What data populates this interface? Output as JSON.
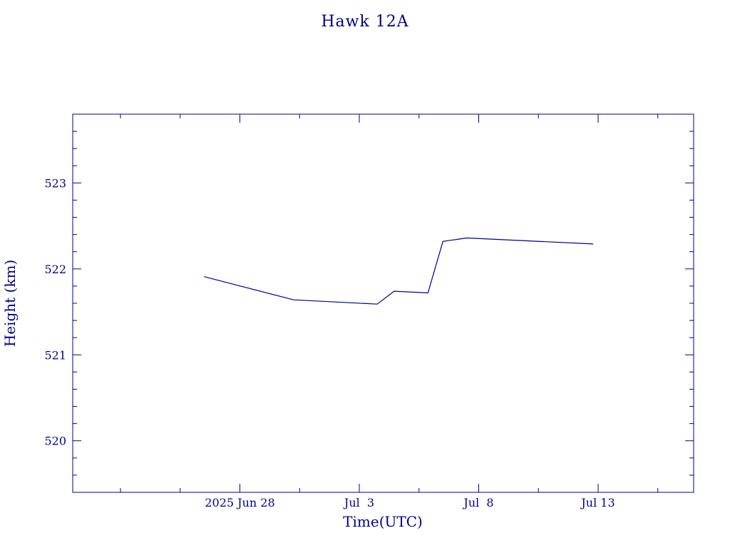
{
  "chart_data": {
    "type": "line",
    "title": "Hawk 12A",
    "xlabel": "Time(UTC)",
    "ylabel": "Height (km)",
    "x_axis": {
      "type": "date",
      "range": [
        "2025-06-21",
        "2025-07-17"
      ],
      "major_ticks": [
        {
          "date": "2025-06-28",
          "label": "2025 Jun 28"
        },
        {
          "date": "2025-07-03",
          "label": "Jul  3"
        },
        {
          "date": "2025-07-08",
          "label": "Jul  8"
        },
        {
          "date": "2025-07-13",
          "label": "Jul 13"
        }
      ]
    },
    "y_axis": {
      "range": [
        519.4,
        523.8
      ],
      "major_ticks": [
        520,
        521,
        522,
        523
      ],
      "tick_labels": [
        "520",
        "521",
        "522",
        "523"
      ]
    },
    "grid": false,
    "colors": {
      "line": "#00008b",
      "axes": "#00008b",
      "text": "#00008b"
    },
    "series": [
      {
        "points": [
          {
            "x": "2025-06-26T12:00",
            "y": 521.91
          },
          {
            "x": "2025-06-30T06:00",
            "y": 521.64
          },
          {
            "x": "2025-07-03T18:00",
            "y": 521.59
          },
          {
            "x": "2025-07-04T11:00",
            "y": 521.74
          },
          {
            "x": "2025-07-05T21:00",
            "y": 521.72
          },
          {
            "x": "2025-07-06T12:00",
            "y": 522.32
          },
          {
            "x": "2025-07-07T12:00",
            "y": 522.36
          },
          {
            "x": "2025-07-12T19:00",
            "y": 522.29
          }
        ]
      }
    ]
  }
}
